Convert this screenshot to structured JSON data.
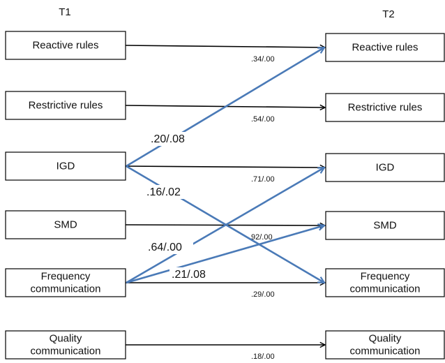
{
  "headers": {
    "t1": "T1",
    "t2": "T2"
  },
  "t1_nodes": [
    {
      "id": "reactive",
      "lines": [
        "Reactive rules"
      ]
    },
    {
      "id": "restrictive",
      "lines": [
        "Restrictive rules"
      ]
    },
    {
      "id": "igd",
      "lines": [
        "IGD"
      ]
    },
    {
      "id": "smd",
      "lines": [
        "SMD"
      ]
    },
    {
      "id": "freq",
      "lines": [
        "Frequency",
        "communication"
      ]
    },
    {
      "id": "quality",
      "lines": [
        "Quality",
        "communication"
      ]
    }
  ],
  "t2_nodes": [
    {
      "id": "reactive",
      "lines": [
        "Reactive rules"
      ]
    },
    {
      "id": "restrictive",
      "lines": [
        "Restrictive rules"
      ]
    },
    {
      "id": "igd",
      "lines": [
        "IGD"
      ]
    },
    {
      "id": "smd",
      "lines": [
        "SMD"
      ]
    },
    {
      "id": "freq",
      "lines": [
        "Frequency",
        "communication"
      ]
    },
    {
      "id": "quality",
      "lines": [
        "Quality",
        "communication"
      ]
    }
  ],
  "stability_paths": [
    {
      "from": "reactive",
      "to": "reactive",
      "label": ".34/.00"
    },
    {
      "from": "restrictive",
      "to": "restrictive",
      "label": ".54/.00"
    },
    {
      "from": "igd",
      "to": "igd",
      "label": ".71/.00"
    },
    {
      "from": "smd",
      "to": "smd",
      "label": "92/.00"
    },
    {
      "from": "freq",
      "to": "freq",
      "label": ".29/.00"
    },
    {
      "from": "quality",
      "to": "quality",
      "label": ".18/.00"
    }
  ],
  "cross_paths": [
    {
      "from": "igd",
      "to": "reactive",
      "label": ".20/.08"
    },
    {
      "from": "igd",
      "to": "freq",
      "label": ".16/.02"
    },
    {
      "from": "freq",
      "to": "igd",
      "label": ".64/.00"
    },
    {
      "from": "freq",
      "to": "smd",
      "label": ".21/.08"
    }
  ],
  "colors": {
    "cross_path": "#4a7ab7",
    "stability_path": "#000000"
  }
}
